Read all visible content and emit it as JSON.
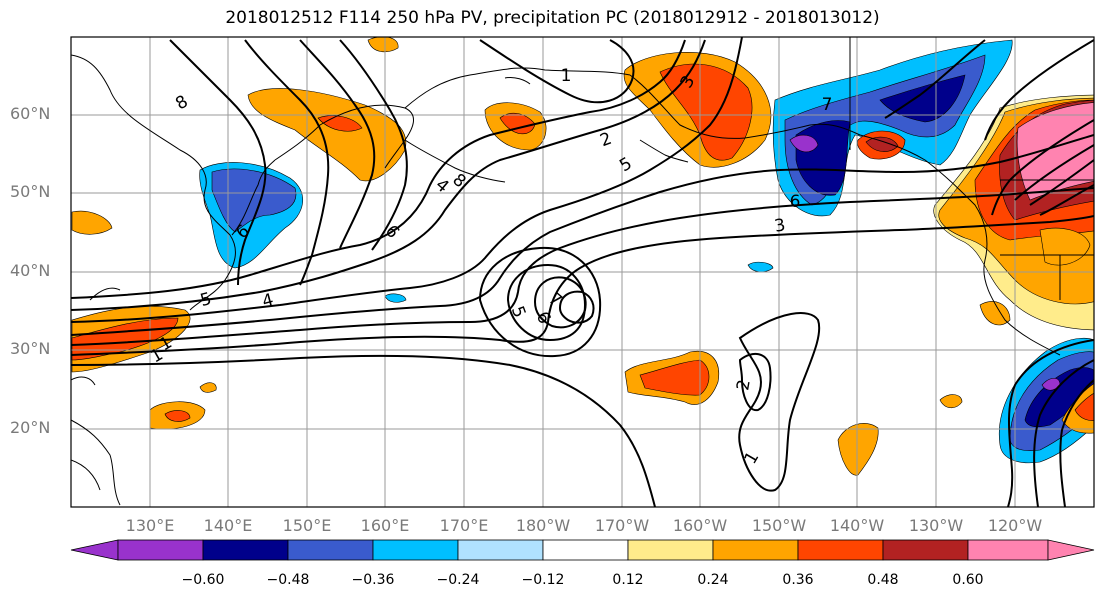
{
  "title": "2018012512 F114 250 hPa PV, precipitation PC (2018012912 - 2018013012)",
  "map": {
    "lat_labels": [
      "60°N",
      "50°N",
      "40°N",
      "30°N",
      "20°N"
    ],
    "lon_labels": [
      "130°E",
      "140°E",
      "150°E",
      "160°E",
      "170°E",
      "180°W",
      "170°W",
      "160°W",
      "150°W",
      "140°W",
      "130°W",
      "120°W"
    ],
    "contour_labels": [
      "8",
      "1",
      "2",
      "3",
      "4",
      "5",
      "6",
      "7",
      "8",
      "6",
      "3",
      "6",
      "4",
      "5",
      "1",
      "5",
      "6",
      "7",
      "2",
      "1",
      "1"
    ],
    "grid": true
  },
  "colorbar": {
    "ticks": [
      "−0.60",
      "−0.48",
      "−0.36",
      "−0.24",
      "−0.12",
      "0.12",
      "0.24",
      "0.36",
      "0.48",
      "0.60"
    ],
    "colors": [
      "#9932CC",
      "#00008B",
      "#3A5BCD",
      "#00BFFF",
      "#B0E2FF",
      "#FFFFFF",
      "#FFEC8B",
      "#FFA500",
      "#FF4500",
      "#B22222",
      "#FF83B0"
    ]
  }
}
